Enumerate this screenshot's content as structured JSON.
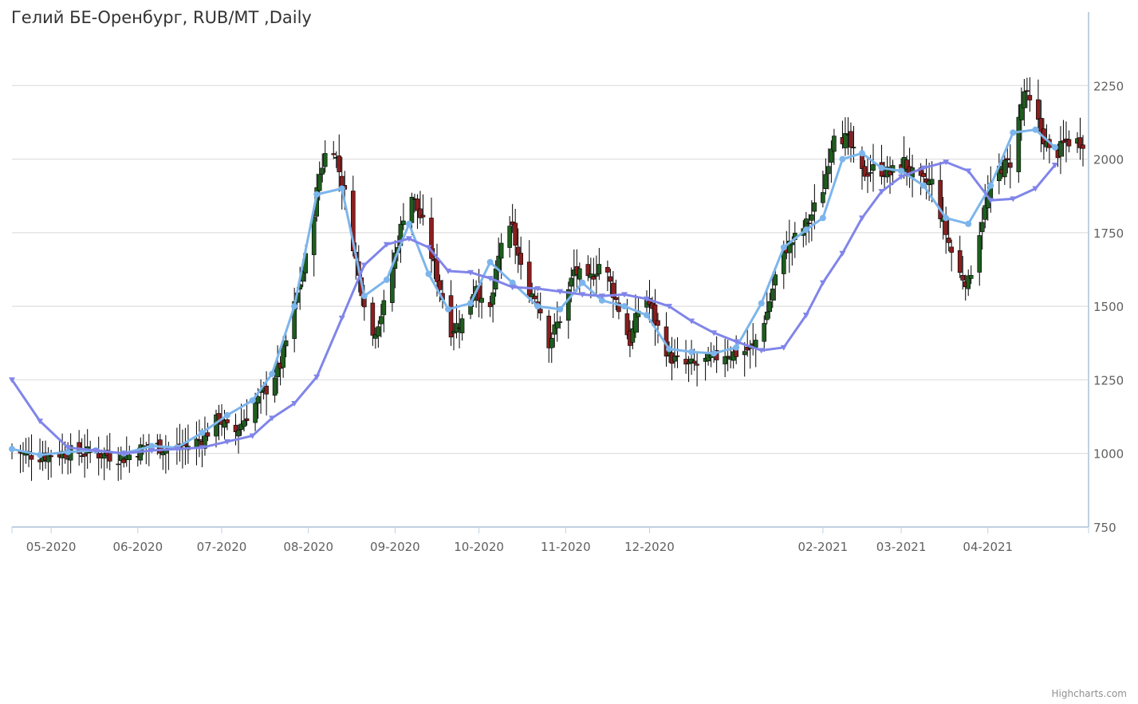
{
  "chart_data": {
    "type": "candlestick",
    "title": "Гелий БЕ-Оренбург, RUB/MT ,Daily",
    "credits": "Highcharts.com",
    "ylim": [
      750,
      2500
    ],
    "yticks": [
      750,
      1000,
      1250,
      1500,
      1750,
      2000,
      2250
    ],
    "y_axis_side": "right",
    "grid": true,
    "x_range": [
      "2020-04-17",
      "2021-05-07"
    ],
    "xticks": [
      {
        "date": "2020-05-01",
        "label": "05-2020"
      },
      {
        "date": "2020-06-01",
        "label": "06-2020"
      },
      {
        "date": "2020-07-01",
        "label": "07-2020"
      },
      {
        "date": "2020-08-01",
        "label": "08-2020"
      },
      {
        "date": "2020-09-01",
        "label": "09-2020"
      },
      {
        "date": "2020-10-01",
        "label": "10-2020"
      },
      {
        "date": "2020-11-01",
        "label": "11-2020"
      },
      {
        "date": "2020-12-01",
        "label": "12-2020"
      },
      {
        "date": "2021-02-01",
        "label": "02-2021"
      },
      {
        "date": "2021-03-01",
        "label": "03-2021"
      },
      {
        "date": "2021-04-01",
        "label": "04-2021"
      }
    ],
    "colors": {
      "up": "#1e5e1e",
      "down": "#8b1e1e",
      "wick": "#000000",
      "fast_ma": "#7cb5ec",
      "slow_ma": "#8085e9",
      "grid": "#d8d8d8",
      "axis": "#c0d0e0"
    },
    "close_path": [
      [
        "2020-04-17",
        1010
      ],
      [
        "2020-04-27",
        990
      ],
      [
        "2020-05-07",
        1005
      ],
      [
        "2020-05-17",
        1000
      ],
      [
        "2020-05-27",
        985
      ],
      [
        "2020-06-05",
        1030
      ],
      [
        "2020-06-15",
        1010
      ],
      [
        "2020-06-24",
        1050
      ],
      [
        "2020-06-30",
        1120
      ],
      [
        "2020-07-05",
        1060
      ],
      [
        "2020-07-10",
        1130
      ],
      [
        "2020-07-17",
        1220
      ],
      [
        "2020-07-22",
        1300
      ],
      [
        "2020-07-27",
        1500
      ],
      [
        "2020-08-01",
        1700
      ],
      [
        "2020-08-05",
        1950
      ],
      [
        "2020-08-09",
        2080
      ],
      [
        "2020-08-14",
        1880
      ],
      [
        "2020-08-19",
        1600
      ],
      [
        "2020-08-24",
        1400
      ],
      [
        "2020-08-28",
        1500
      ],
      [
        "2020-09-02",
        1720
      ],
      [
        "2020-09-06",
        1900
      ],
      [
        "2020-09-11",
        1780
      ],
      [
        "2020-09-16",
        1600
      ],
      [
        "2020-09-21",
        1420
      ],
      [
        "2020-09-25",
        1450
      ],
      [
        "2020-09-30",
        1580
      ],
      [
        "2020-10-04",
        1430
      ],
      [
        "2020-10-09",
        1720
      ],
      [
        "2020-10-13",
        1760
      ],
      [
        "2020-10-17",
        1580
      ],
      [
        "2020-10-22",
        1520
      ],
      [
        "2020-10-26",
        1380
      ],
      [
        "2020-10-31",
        1480
      ],
      [
        "2020-11-04",
        1620
      ],
      [
        "2020-11-09",
        1580
      ],
      [
        "2020-11-14",
        1660
      ],
      [
        "2020-11-19",
        1520
      ],
      [
        "2020-11-24",
        1380
      ],
      [
        "2020-11-29",
        1560
      ],
      [
        "2020-12-03",
        1450
      ],
      [
        "2020-12-08",
        1330
      ],
      [
        "2020-12-13",
        1300
      ],
      [
        "2020-12-18",
        1300
      ],
      [
        "2020-12-23",
        1320
      ],
      [
        "2020-12-28",
        1340
      ],
      [
        "2021-01-02",
        1340
      ],
      [
        "2021-01-07",
        1360
      ],
      [
        "2021-01-12",
        1480
      ],
      [
        "2021-01-17",
        1680
      ],
      [
        "2021-01-22",
        1730
      ],
      [
        "2021-01-27",
        1790
      ],
      [
        "2021-02-01",
        1900
      ],
      [
        "2021-02-05",
        2100
      ],
      [
        "2021-02-10",
        2060
      ],
      [
        "2021-02-15",
        1950
      ],
      [
        "2021-02-20",
        1970
      ],
      [
        "2021-02-25",
        1950
      ],
      [
        "2021-03-02",
        1990
      ],
      [
        "2021-03-07",
        1920
      ],
      [
        "2021-03-12",
        1920
      ],
      [
        "2021-03-16",
        1780
      ],
      [
        "2021-03-21",
        1620
      ],
      [
        "2021-03-25",
        1580
      ],
      [
        "2021-03-30",
        1800
      ],
      [
        "2021-04-04",
        1960
      ],
      [
        "2021-04-09",
        1990
      ],
      [
        "2021-04-14",
        2230
      ],
      [
        "2021-04-19",
        2120
      ],
      [
        "2021-04-24",
        2000
      ],
      [
        "2021-04-29",
        2060
      ],
      [
        "2021-05-05",
        2060
      ]
    ],
    "series": [
      {
        "type": "line",
        "marker": "circle",
        "color": "#7cb5ec",
        "x": [
          "2020-04-17",
          "2020-04-27",
          "2020-05-07",
          "2020-05-17",
          "2020-05-27",
          "2020-06-06",
          "2020-06-15",
          "2020-06-24",
          "2020-07-03",
          "2020-07-12",
          "2020-07-19",
          "2020-07-27",
          "2020-08-04",
          "2020-08-13",
          "2020-08-21",
          "2020-08-29",
          "2020-09-06",
          "2020-09-13",
          "2020-09-20",
          "2020-09-28",
          "2020-10-05",
          "2020-10-13",
          "2020-10-22",
          "2020-10-30",
          "2020-11-07",
          "2020-11-14",
          "2020-11-22",
          "2020-11-30",
          "2020-12-08",
          "2020-12-16",
          "2020-12-24",
          "2021-01-01",
          "2021-01-10",
          "2021-01-18",
          "2021-01-26",
          "2021-02-01",
          "2021-02-08",
          "2021-02-15",
          "2021-02-22",
          "2021-03-01",
          "2021-03-09",
          "2021-03-17",
          "2021-03-25",
          "2021-04-02",
          "2021-04-10",
          "2021-04-18",
          "2021-04-25"
        ],
        "values": [
          1015,
          995,
          1005,
          1010,
          1000,
          1025,
          1020,
          1070,
          1130,
          1180,
          1270,
          1500,
          1880,
          1900,
          1535,
          1590,
          1780,
          1610,
          1490,
          1510,
          1650,
          1580,
          1500,
          1490,
          1580,
          1520,
          1500,
          1470,
          1355,
          1345,
          1340,
          1360,
          1510,
          1700,
          1760,
          1800,
          2000,
          2020,
          1970,
          1960,
          1910,
          1800,
          1780,
          1910,
          2090,
          2100,
          2040
        ]
      },
      {
        "type": "line",
        "marker": "triangle-down",
        "color": "#8085e9",
        "x": [
          "2020-04-17",
          "2020-04-27",
          "2020-05-07",
          "2020-05-17",
          "2020-05-27",
          "2020-06-06",
          "2020-06-15",
          "2020-06-24",
          "2020-07-03",
          "2020-07-12",
          "2020-07-19",
          "2020-07-27",
          "2020-08-04",
          "2020-08-13",
          "2020-08-21",
          "2020-08-29",
          "2020-09-06",
          "2020-09-13",
          "2020-09-20",
          "2020-09-28",
          "2020-10-05",
          "2020-10-13",
          "2020-10-22",
          "2020-10-30",
          "2020-11-07",
          "2020-11-14",
          "2020-11-22",
          "2020-11-30",
          "2020-12-08",
          "2020-12-16",
          "2020-12-24",
          "2021-01-01",
          "2021-01-10",
          "2021-01-18",
          "2021-01-26",
          "2021-02-01",
          "2021-02-08",
          "2021-02-15",
          "2021-02-22",
          "2021-03-01",
          "2021-03-09",
          "2021-03-17",
          "2021-03-25",
          "2021-04-02",
          "2021-04-10",
          "2021-04-18",
          "2021-04-25"
        ],
        "values": [
          1250,
          1110,
          1020,
          1010,
          1000,
          1010,
          1015,
          1020,
          1040,
          1060,
          1120,
          1170,
          1260,
          1460,
          1640,
          1710,
          1730,
          1700,
          1620,
          1615,
          1595,
          1565,
          1560,
          1550,
          1540,
          1535,
          1540,
          1525,
          1500,
          1450,
          1410,
          1380,
          1350,
          1360,
          1470,
          1580,
          1680,
          1800,
          1890,
          1940,
          1970,
          1990,
          1960,
          1860,
          1865,
          1900,
          1980
        ]
      }
    ]
  }
}
